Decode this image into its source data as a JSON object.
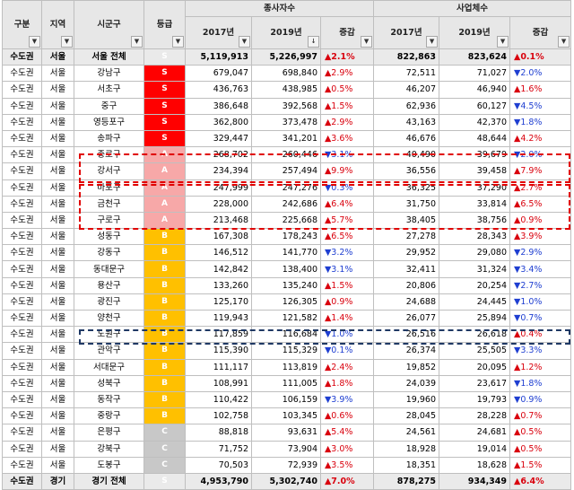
{
  "headers": {
    "region_group": "구분",
    "area": "지역",
    "district": "시군구",
    "grade": "등급",
    "employees": "종사자수",
    "businesses": "사업체수",
    "y2017": "2017년",
    "y2019": "2019년",
    "change": "증감",
    "filter_icon": "dropdown-arrow-icon",
    "sort_icon": "sort-descending-icon"
  },
  "colors": {
    "grade_S": "#ff0000",
    "grade_A": "#f7a8a8",
    "grade_B": "#ffc000",
    "grade_C": "#c8c8c8",
    "increase": "#d9000d",
    "decrease": "#1f3fd1",
    "highlight_red": "#e00000",
    "highlight_navy": "#1f3864"
  },
  "rows": [
    {
      "group": "수도권",
      "area": "서울",
      "district": "서울 전체",
      "grade": "S",
      "e2017": "5,119,913",
      "e2019": "5,226,997",
      "echg": "▲2.1%",
      "b2017": "822,863",
      "b2019": "823,624",
      "bchg": "▲0.1%",
      "total": true
    },
    {
      "group": "수도권",
      "area": "서울",
      "district": "강남구",
      "grade": "S",
      "e2017": "679,047",
      "e2019": "698,840",
      "echg": "▲2.9%",
      "b2017": "72,511",
      "b2019": "71,027",
      "bchg": "▼2.0%"
    },
    {
      "group": "수도권",
      "area": "서울",
      "district": "서초구",
      "grade": "S",
      "e2017": "436,763",
      "e2019": "438,985",
      "echg": "▲0.5%",
      "b2017": "46,207",
      "b2019": "46,940",
      "bchg": "▲1.6%"
    },
    {
      "group": "수도권",
      "area": "서울",
      "district": "중구",
      "grade": "S",
      "e2017": "386,648",
      "e2019": "392,568",
      "echg": "▲1.5%",
      "b2017": "62,936",
      "b2019": "60,127",
      "bchg": "▼4.5%"
    },
    {
      "group": "수도권",
      "area": "서울",
      "district": "영등포구",
      "grade": "S",
      "e2017": "362,800",
      "e2019": "373,478",
      "echg": "▲2.9%",
      "b2017": "43,163",
      "b2019": "42,370",
      "bchg": "▼1.8%"
    },
    {
      "group": "수도권",
      "area": "서울",
      "district": "송파구",
      "grade": "S",
      "e2017": "329,447",
      "e2019": "341,201",
      "echg": "▲3.6%",
      "b2017": "46,676",
      "b2019": "48,644",
      "bchg": "▲4.2%"
    },
    {
      "group": "수도권",
      "area": "서울",
      "district": "종로구",
      "grade": "A",
      "e2017": "268,702",
      "e2019": "260,446",
      "echg": "▼3.1%",
      "b2017": "40,490",
      "b2019": "39,679",
      "bchg": "▼2.0%"
    },
    {
      "group": "수도권",
      "area": "서울",
      "district": "강서구",
      "grade": "A",
      "e2017": "234,394",
      "e2019": "257,494",
      "echg": "▲9.9%",
      "b2017": "36,556",
      "b2019": "39,458",
      "bchg": "▲7.9%"
    },
    {
      "group": "수도권",
      "area": "서울",
      "district": "마포구",
      "grade": "A",
      "e2017": "247,999",
      "e2019": "247,276",
      "echg": "▼0.3%",
      "b2017": "36,325",
      "b2019": "37,290",
      "bchg": "▲2.7%"
    },
    {
      "group": "수도권",
      "area": "서울",
      "district": "금천구",
      "grade": "A",
      "e2017": "228,000",
      "e2019": "242,686",
      "echg": "▲6.4%",
      "b2017": "31,750",
      "b2019": "33,814",
      "bchg": "▲6.5%"
    },
    {
      "group": "수도권",
      "area": "서울",
      "district": "구로구",
      "grade": "A",
      "e2017": "213,468",
      "e2019": "225,668",
      "echg": "▲5.7%",
      "b2017": "38,405",
      "b2019": "38,756",
      "bchg": "▲0.9%"
    },
    {
      "group": "수도권",
      "area": "서울",
      "district": "성동구",
      "grade": "B",
      "e2017": "167,308",
      "e2019": "178,243",
      "echg": "▲6.5%",
      "b2017": "27,278",
      "b2019": "28,343",
      "bchg": "▲3.9%"
    },
    {
      "group": "수도권",
      "area": "서울",
      "district": "강동구",
      "grade": "B",
      "e2017": "146,512",
      "e2019": "141,770",
      "echg": "▼3.2%",
      "b2017": "29,952",
      "b2019": "29,080",
      "bchg": "▼2.9%"
    },
    {
      "group": "수도권",
      "area": "서울",
      "district": "동대문구",
      "grade": "B",
      "e2017": "142,842",
      "e2019": "138,400",
      "echg": "▼3.1%",
      "b2017": "32,411",
      "b2019": "31,324",
      "bchg": "▼3.4%"
    },
    {
      "group": "수도권",
      "area": "서울",
      "district": "용산구",
      "grade": "B",
      "e2017": "133,260",
      "e2019": "135,240",
      "echg": "▲1.5%",
      "b2017": "20,806",
      "b2019": "20,254",
      "bchg": "▼2.7%"
    },
    {
      "group": "수도권",
      "area": "서울",
      "district": "광진구",
      "grade": "B",
      "e2017": "125,170",
      "e2019": "126,305",
      "echg": "▲0.9%",
      "b2017": "24,688",
      "b2019": "24,445",
      "bchg": "▼1.0%"
    },
    {
      "group": "수도권",
      "area": "서울",
      "district": "양천구",
      "grade": "B",
      "e2017": "119,943",
      "e2019": "121,582",
      "echg": "▲1.4%",
      "b2017": "26,077",
      "b2019": "25,894",
      "bchg": "▼0.7%"
    },
    {
      "group": "수도권",
      "area": "서울",
      "district": "노원구",
      "grade": "B",
      "e2017": "117,859",
      "e2019": "116,684",
      "echg": "▼1.0%",
      "b2017": "26,516",
      "b2019": "26,618",
      "bchg": "▲0.4%"
    },
    {
      "group": "수도권",
      "area": "서울",
      "district": "관악구",
      "grade": "B",
      "e2017": "115,390",
      "e2019": "115,329",
      "echg": "▼0.1%",
      "b2017": "26,374",
      "b2019": "25,505",
      "bchg": "▼3.3%"
    },
    {
      "group": "수도권",
      "area": "서울",
      "district": "서대문구",
      "grade": "B",
      "e2017": "111,117",
      "e2019": "113,819",
      "echg": "▲2.4%",
      "b2017": "19,852",
      "b2019": "20,095",
      "bchg": "▲1.2%"
    },
    {
      "group": "수도권",
      "area": "서울",
      "district": "성북구",
      "grade": "B",
      "e2017": "108,991",
      "e2019": "111,005",
      "echg": "▲1.8%",
      "b2017": "24,039",
      "b2019": "23,617",
      "bchg": "▼1.8%"
    },
    {
      "group": "수도권",
      "area": "서울",
      "district": "동작구",
      "grade": "B",
      "e2017": "110,422",
      "e2019": "106,159",
      "echg": "▼3.9%",
      "b2017": "19,960",
      "b2019": "19,793",
      "bchg": "▼0.9%"
    },
    {
      "group": "수도권",
      "area": "서울",
      "district": "중랑구",
      "grade": "B",
      "e2017": "102,758",
      "e2019": "103,345",
      "echg": "▲0.6%",
      "b2017": "28,045",
      "b2019": "28,228",
      "bchg": "▲0.7%"
    },
    {
      "group": "수도권",
      "area": "서울",
      "district": "은평구",
      "grade": "C",
      "e2017": "88,818",
      "e2019": "93,631",
      "echg": "▲5.4%",
      "b2017": "24,561",
      "b2019": "24,681",
      "bchg": "▲0.5%"
    },
    {
      "group": "수도권",
      "area": "서울",
      "district": "강북구",
      "grade": "C",
      "e2017": "71,752",
      "e2019": "73,904",
      "echg": "▲3.0%",
      "b2017": "18,928",
      "b2019": "19,014",
      "bchg": "▲0.5%"
    },
    {
      "group": "수도권",
      "area": "서울",
      "district": "도봉구",
      "grade": "C",
      "e2017": "70,503",
      "e2019": "72,939",
      "echg": "▲3.5%",
      "b2017": "18,351",
      "b2019": "18,628",
      "bchg": "▲1.5%"
    },
    {
      "group": "수도권",
      "area": "경기",
      "district": "경기 전체",
      "grade": "S",
      "e2017": "4,953,790",
      "e2019": "5,302,740",
      "echg": "▲7.0%",
      "b2017": "878,275",
      "b2019": "934,349",
      "bchg": "▲6.4%",
      "total": true
    }
  ]
}
